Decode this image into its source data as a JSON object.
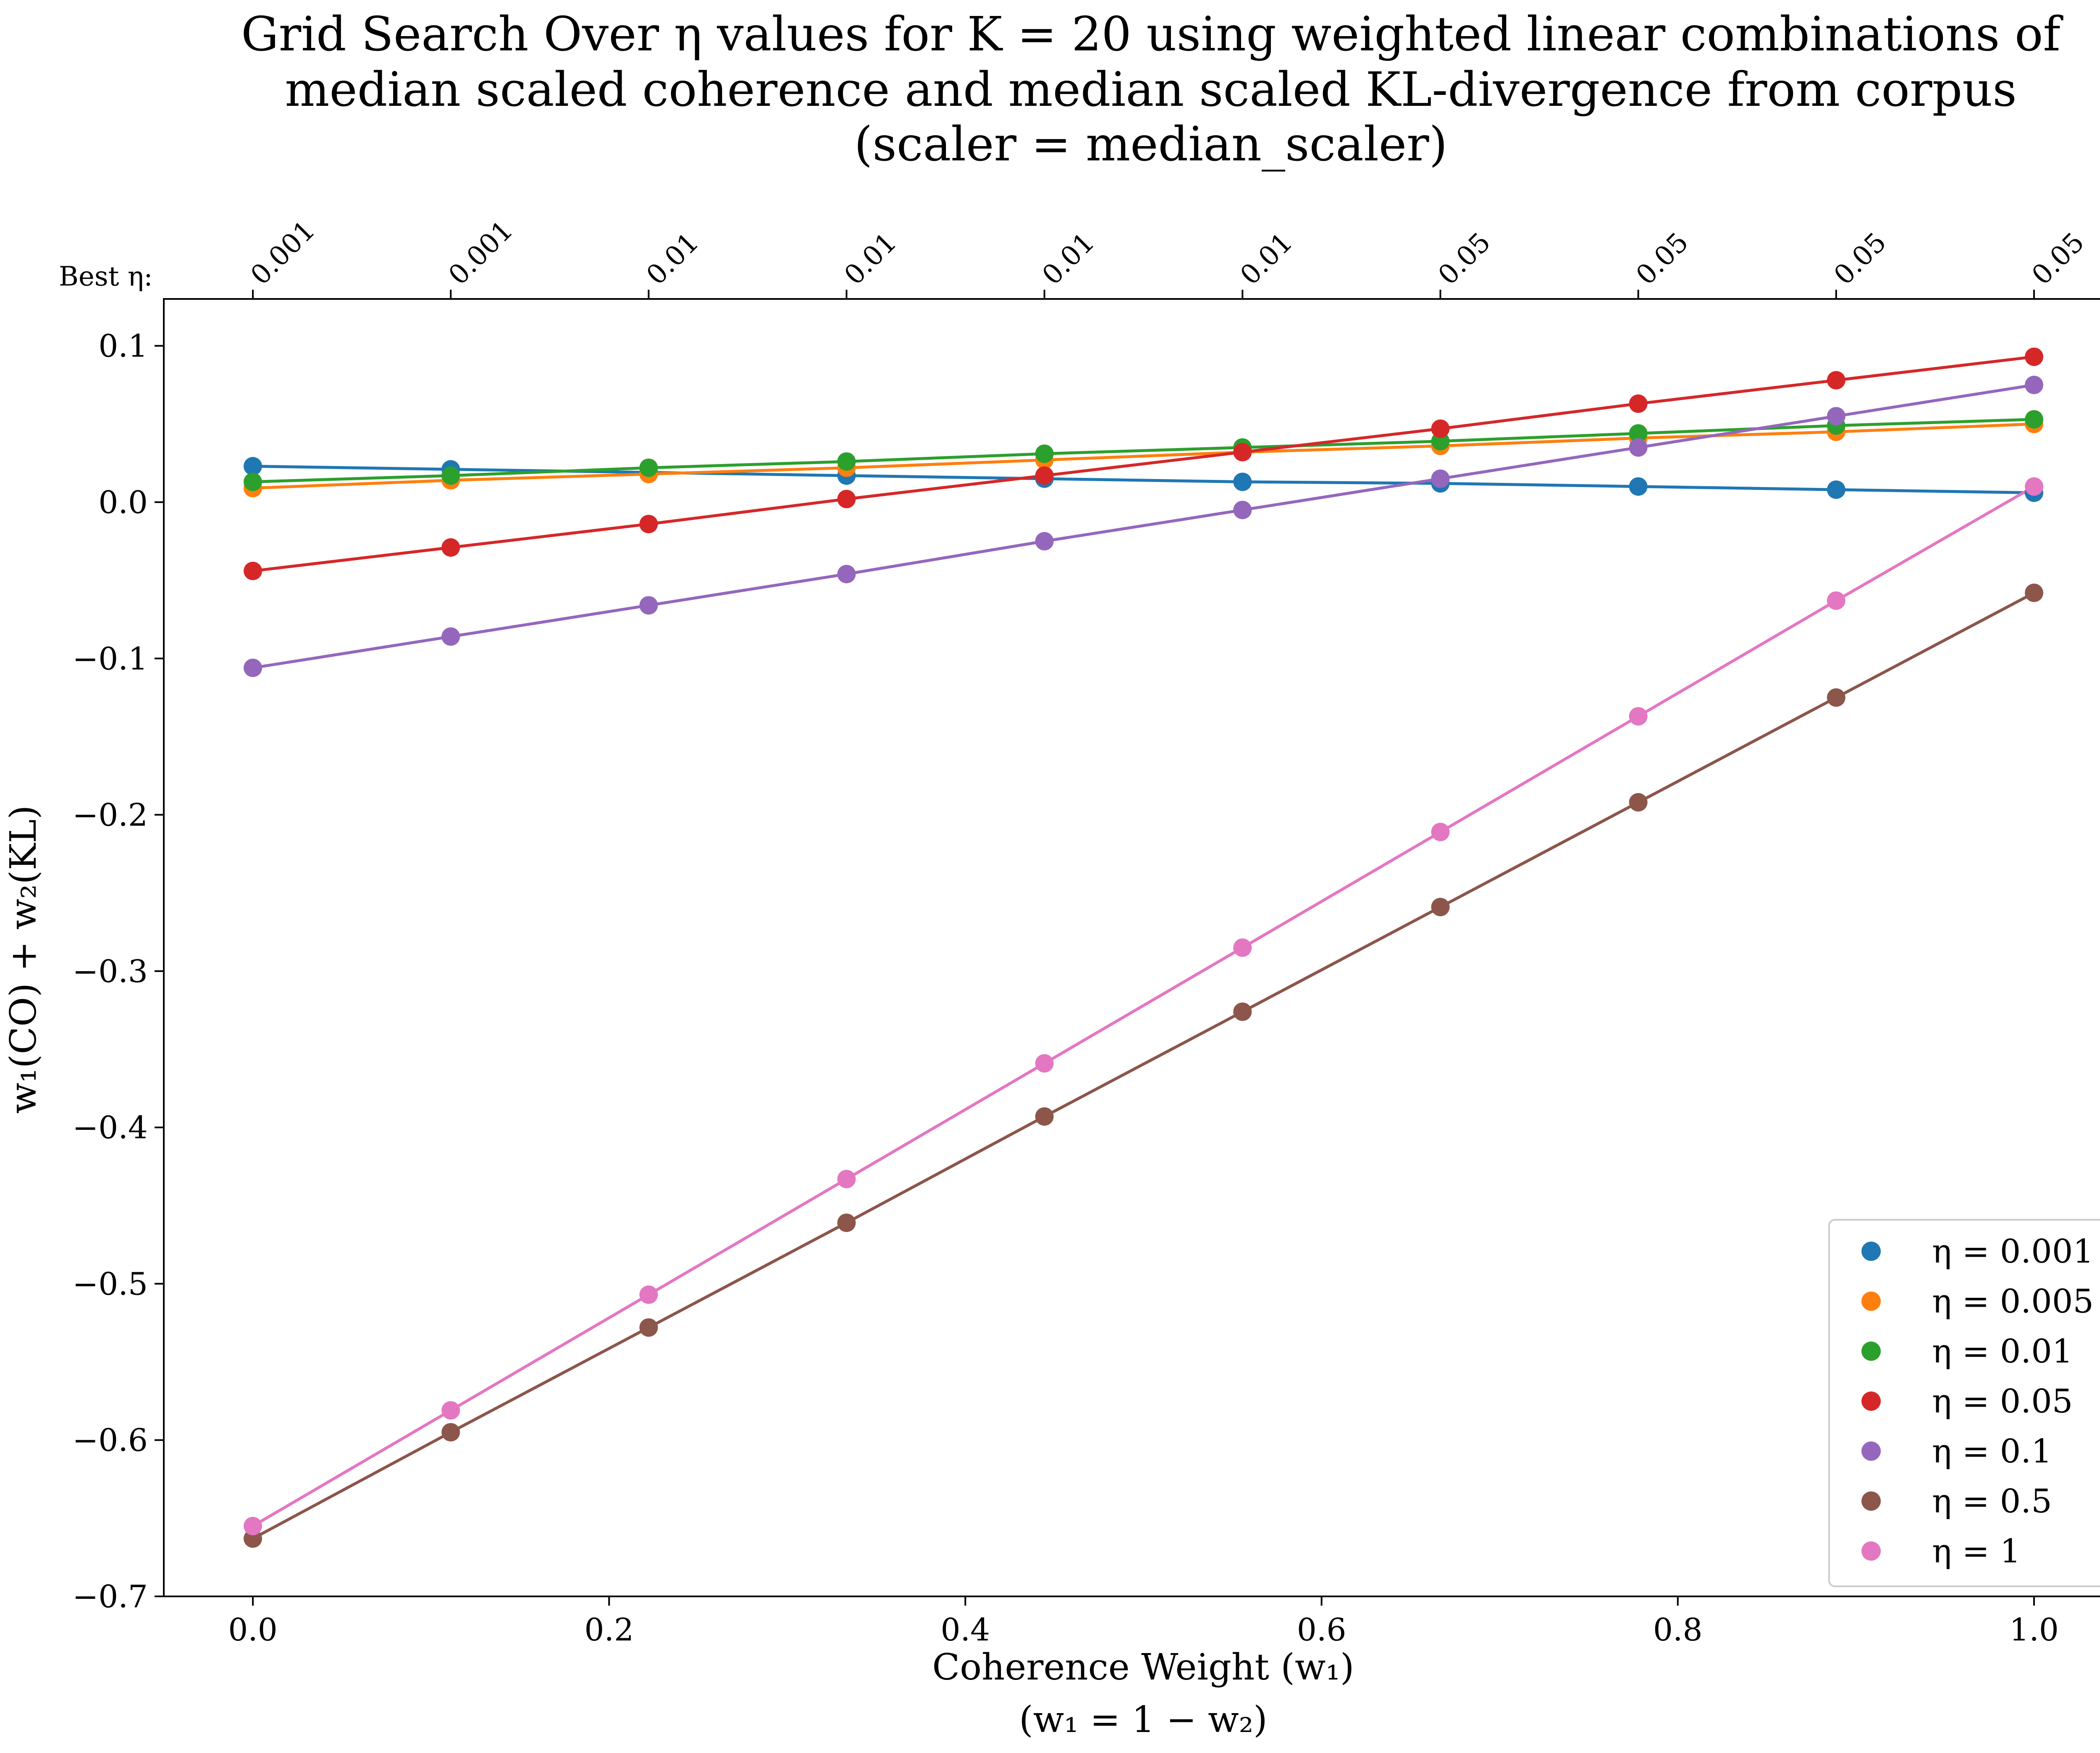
{
  "chart_data": {
    "type": "line",
    "title_lines": [
      "Grid Search Over η values for K = 20 using weighted linear combinations of",
      "median scaled coherence and median scaled KL-divergence from corpus",
      "(scaler = median_scaler)"
    ],
    "xlabel": "Coherence Weight (w₁)",
    "xlabel_line2": "(w₁ = 1 − w₂)",
    "ylabel": "w₁(CO) + w₂(KL)",
    "top_axis_label": "Best η:",
    "top_tick_labels": [
      "0.001",
      "0.001",
      "0.01",
      "0.01",
      "0.01",
      "0.01",
      "0.05",
      "0.05",
      "0.05",
      "0.05"
    ],
    "x": [
      0,
      0.1111,
      0.2222,
      0.3333,
      0.4444,
      0.5556,
      0.6667,
      0.7778,
      0.8889,
      1.0
    ],
    "xlim": [
      -0.05,
      1.05
    ],
    "ylim": [
      -0.7,
      0.13
    ],
    "xticks": [
      0.0,
      0.2,
      0.4,
      0.6,
      0.8,
      1.0
    ],
    "xtick_labels": [
      "0.0",
      "0.2",
      "0.4",
      "0.6",
      "0.8",
      "1.0"
    ],
    "yticks": [
      0.1,
      0.0,
      -0.1,
      -0.2,
      -0.3,
      -0.4,
      -0.5,
      -0.6,
      -0.7
    ],
    "ytick_labels": [
      "0.1",
      "0.0",
      "−0.1",
      "−0.2",
      "−0.3",
      "−0.4",
      "−0.5",
      "−0.6",
      "−0.7"
    ],
    "grid": false,
    "legend_position": "lower-right",
    "series": [
      {
        "name": "η = 0.001",
        "color": "#1f77b4",
        "values": [
          0.023,
          0.021,
          0.019,
          0.017,
          0.015,
          0.013,
          0.012,
          0.01,
          0.008,
          0.006
        ]
      },
      {
        "name": "η = 0.005",
        "color": "#ff7f0e",
        "values": [
          0.009,
          0.014,
          0.018,
          0.022,
          0.027,
          0.032,
          0.036,
          0.041,
          0.045,
          0.05
        ]
      },
      {
        "name": "η = 0.01",
        "color": "#2ca02c",
        "values": [
          0.013,
          0.017,
          0.022,
          0.026,
          0.031,
          0.035,
          0.039,
          0.044,
          0.049,
          0.053
        ]
      },
      {
        "name": "η = 0.05",
        "color": "#d62728",
        "values": [
          -0.044,
          -0.029,
          -0.014,
          0.002,
          0.017,
          0.032,
          0.047,
          0.063,
          0.078,
          0.093
        ]
      },
      {
        "name": "η = 0.1",
        "color": "#9467bd",
        "values": [
          -0.106,
          -0.086,
          -0.066,
          -0.046,
          -0.025,
          -0.005,
          0.015,
          0.035,
          0.055,
          0.075
        ]
      },
      {
        "name": "η = 0.5",
        "color": "#8c564b",
        "values": [
          -0.663,
          -0.595,
          -0.528,
          -0.461,
          -0.393,
          -0.326,
          -0.259,
          -0.192,
          -0.125,
          -0.058
        ]
      },
      {
        "name": "η = 1",
        "color": "#e377c2",
        "values": [
          -0.655,
          -0.581,
          -0.507,
          -0.433,
          -0.359,
          -0.285,
          -0.211,
          -0.137,
          -0.063,
          0.01
        ]
      }
    ]
  }
}
